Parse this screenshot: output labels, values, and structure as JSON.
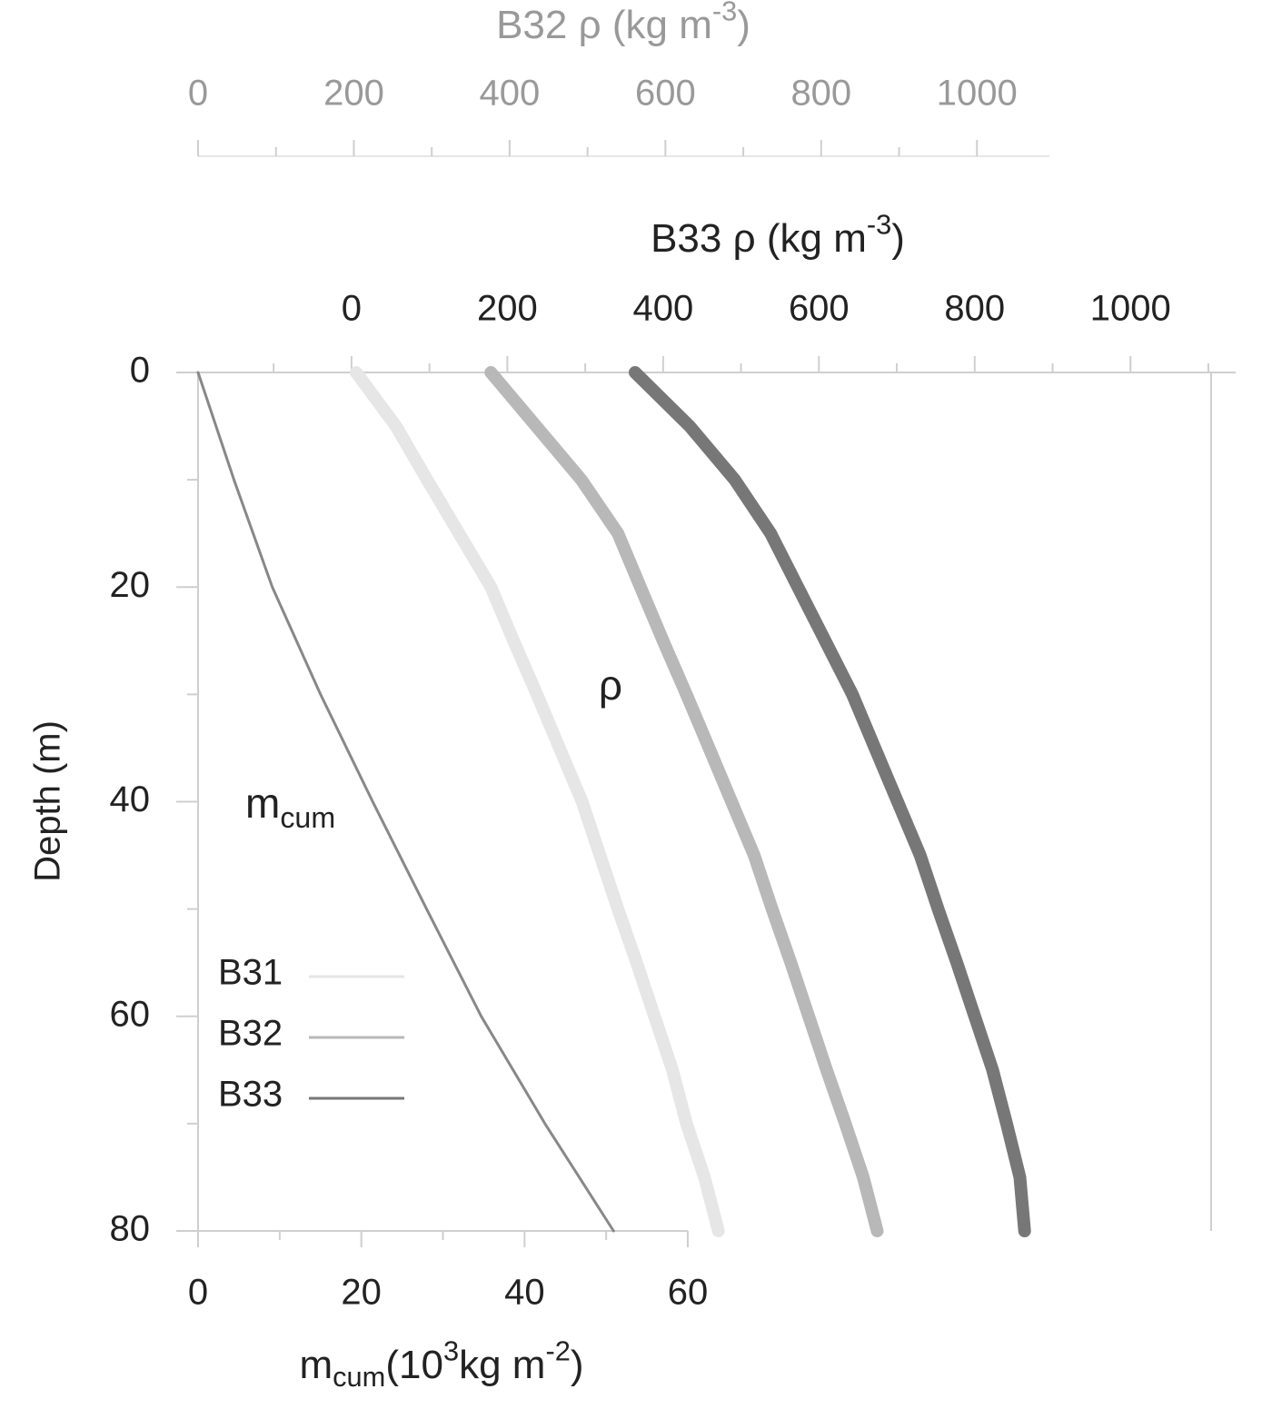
{
  "chart_data": {
    "type": "line",
    "y_label": "Depth (m)",
    "ylim": [
      0,
      80
    ],
    "yticks": [
      0,
      20,
      40,
      60,
      80
    ],
    "y_minor_ticks": [
      10,
      30,
      50,
      70
    ],
    "y_inverted": true,
    "axes": {
      "x_b32": {
        "label": [
          {
            "text": "B32 ρ (kg m"
          },
          {
            "text": "-3",
            "script": "sup"
          },
          {
            "text": ")"
          }
        ],
        "xlim": [
          0,
          1093
        ],
        "xticks": [
          0,
          200,
          400,
          600,
          800,
          1000
        ],
        "minor_ticks": [
          100,
          300,
          500,
          700,
          900
        ],
        "color": "#999999"
      },
      "x_b33": {
        "label": [
          {
            "text": "B33 ρ (kg m"
          },
          {
            "text": "-3",
            "script": "sup"
          },
          {
            "text": ")"
          }
        ],
        "xlim": [
          -197,
          1135
        ],
        "xticks": [
          0,
          200,
          400,
          600,
          800,
          1000
        ],
        "minor_ticks": [
          -100,
          100,
          300,
          500,
          700,
          900,
          1100
        ],
        "color": "#222222"
      },
      "x_b31": {
        "xlim": [
          197,
          1529
        ]
      },
      "x_mcum": {
        "label": [
          {
            "text": "m"
          },
          {
            "text": "cum",
            "script": "sub"
          },
          {
            "text": "(10"
          },
          {
            "text": "3",
            "script": "sup"
          },
          {
            "text": "kg m"
          },
          {
            "text": "-2",
            "script": "sup"
          },
          {
            "text": ")"
          }
        ],
        "xlim": [
          0,
          60
        ],
        "xticks": [
          0,
          20,
          40,
          60
        ],
        "minor_ticks": [
          10,
          30,
          50
        ],
        "color": "#222222"
      }
    },
    "depth": [
      0,
      5,
      10,
      15,
      20,
      25,
      30,
      35,
      40,
      45,
      50,
      55,
      60,
      65,
      70,
      75,
      80
    ],
    "series": [
      {
        "name": "B31",
        "axis": "x_b31",
        "color": "#e6e6e6",
        "values": [
          400,
          451,
          491,
          532,
          573,
          602,
          632,
          661,
          690,
          713,
          736,
          760,
          783,
          806,
          824,
          847,
          865
        ]
      },
      {
        "name": "B32",
        "axis": "x_b32",
        "color": "#b8b8b8",
        "values": [
          376,
          434,
          492,
          539,
          568,
          597,
          627,
          656,
          685,
          714,
          737,
          761,
          784,
          807,
          831,
          854,
          872
        ]
      },
      {
        "name": "B33",
        "axis": "x_b33",
        "color": "#777777",
        "values": [
          364,
          434,
          492,
          538,
          573,
          608,
          643,
          672,
          701,
          730,
          753,
          777,
          800,
          823,
          841,
          858,
          864
        ]
      }
    ],
    "m_cum": {
      "axis": "x_mcum",
      "color": "#888888",
      "depth": [
        0,
        10,
        20,
        30,
        40,
        50,
        60,
        70,
        80
      ],
      "values": [
        0,
        4.4,
        9.1,
        15,
        21.4,
        28,
        34.7,
        42.5,
        50.9
      ]
    },
    "annotations": {
      "rho": "ρ",
      "m_cum": [
        {
          "text": "m"
        },
        {
          "text": "cum",
          "script": "sub"
        }
      ]
    }
  }
}
